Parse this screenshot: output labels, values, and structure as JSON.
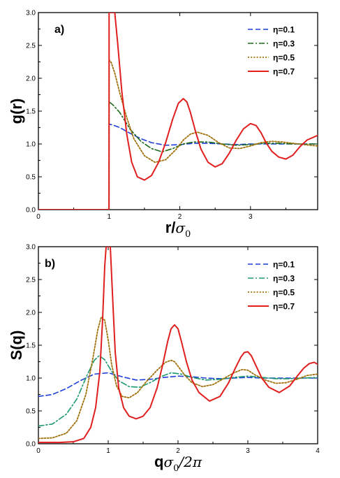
{
  "chart_data": [
    {
      "type": "line",
      "panel": "a)",
      "ylabel": "g(r)",
      "xlabel": {
        "main": "r/",
        "sym": "σ",
        "sub": "0"
      },
      "xlim": [
        0,
        3.95
      ],
      "ylim": [
        0,
        3.0
      ],
      "xticks": [
        0,
        1,
        2,
        3
      ],
      "yticks": [
        0.0,
        0.5,
        1.0,
        1.5,
        2.0,
        2.5,
        3.0
      ],
      "ytick_labels": [
        "0.0",
        "0.5",
        "1.0",
        "1.5",
        "2.0",
        "2.5",
        "3.0"
      ],
      "legend_position": "top-right",
      "series": [
        {
          "name": "η=0.1",
          "color": "#1f3fd6",
          "style": "dashed",
          "x": [
            0,
            0.999,
            1.0,
            1.05,
            1.15,
            1.3,
            1.45,
            1.6,
            1.8,
            2.0,
            2.2,
            2.4,
            2.6,
            2.8,
            3.0,
            3.2,
            3.4,
            3.6,
            3.8,
            3.95
          ],
          "y": [
            0,
            0,
            1.3,
            1.29,
            1.25,
            1.16,
            1.08,
            1.02,
            0.98,
            0.99,
            1.01,
            1.01,
            1.0,
            0.99,
            1.0,
            1.0,
            1.0,
            1.0,
            1.0,
            1.0
          ]
        },
        {
          "name": "η=0.3",
          "color": "#1a6b1a",
          "style": "dashdot",
          "x": [
            0,
            0.999,
            1.0,
            1.05,
            1.15,
            1.3,
            1.45,
            1.6,
            1.75,
            1.9,
            2.05,
            2.2,
            2.4,
            2.6,
            2.8,
            3.0,
            3.2,
            3.4,
            3.6,
            3.8,
            3.95
          ],
          "y": [
            0,
            0,
            1.64,
            1.6,
            1.48,
            1.22,
            1.04,
            0.93,
            0.88,
            0.93,
            1.0,
            1.03,
            1.03,
            1.0,
            0.98,
            0.99,
            1.01,
            1.01,
            1.0,
            1.0,
            1.0
          ]
        },
        {
          "name": "η=0.5",
          "color": "#a0700a",
          "style": "dotted",
          "x": [
            0,
            0.999,
            1.0,
            1.03,
            1.08,
            1.15,
            1.25,
            1.35,
            1.5,
            1.65,
            1.8,
            1.95,
            2.05,
            2.15,
            2.25,
            2.4,
            2.55,
            2.7,
            2.85,
            3.0,
            3.15,
            3.3,
            3.45,
            3.6,
            3.75,
            3.95
          ],
          "y": [
            0,
            0,
            2.28,
            2.24,
            2.08,
            1.78,
            1.4,
            1.08,
            0.82,
            0.72,
            0.76,
            0.92,
            1.06,
            1.15,
            1.18,
            1.13,
            1.02,
            0.94,
            0.93,
            0.97,
            1.02,
            1.04,
            1.03,
            1.01,
            0.99,
            0.97
          ]
        },
        {
          "name": "η=0.7",
          "color": "#e01e1e",
          "style": "solid",
          "x": [
            0,
            0.999,
            1.0,
            1.02,
            1.05,
            1.08,
            1.12,
            1.18,
            1.25,
            1.32,
            1.4,
            1.5,
            1.6,
            1.7,
            1.8,
            1.9,
            1.98,
            2.05,
            2.1,
            2.15,
            2.22,
            2.3,
            2.4,
            2.5,
            2.6,
            2.7,
            2.8,
            2.9,
            3.0,
            3.08,
            3.15,
            3.22,
            3.3,
            3.4,
            3.5,
            3.6,
            3.7,
            3.8,
            3.95
          ],
          "y": [
            0,
            0,
            3.0,
            3.0,
            3.0,
            3.0,
            2.55,
            1.8,
            1.15,
            0.72,
            0.5,
            0.45,
            0.52,
            0.72,
            1.02,
            1.38,
            1.62,
            1.69,
            1.64,
            1.48,
            1.2,
            0.92,
            0.72,
            0.65,
            0.7,
            0.86,
            1.06,
            1.23,
            1.31,
            1.28,
            1.17,
            1.02,
            0.89,
            0.8,
            0.77,
            0.83,
            0.96,
            1.06,
            1.13
          ]
        }
      ]
    },
    {
      "type": "line",
      "panel": "b)",
      "ylabel": "S(q)",
      "xlabel": {
        "main": "q",
        "sym": "σ",
        "sub": "0",
        "tail": "/2π"
      },
      "xlim": [
        0,
        4
      ],
      "ylim": [
        0,
        3.0
      ],
      "xticks": [
        0,
        1,
        2,
        3,
        4
      ],
      "yticks": [
        0.0,
        0.5,
        1.0,
        1.5,
        2.0,
        2.5,
        3.0
      ],
      "ytick_labels": [
        "0.0",
        "0.5",
        "1.0",
        "1.5",
        "2.0",
        "2.5",
        "3.0"
      ],
      "legend_position": "top-right",
      "series": [
        {
          "name": "η=0.1",
          "color": "#1f3fd6",
          "style": "dashed",
          "x": [
            0,
            0.2,
            0.4,
            0.6,
            0.8,
            1.0,
            1.2,
            1.4,
            1.6,
            1.8,
            2.0,
            2.2,
            2.4,
            2.6,
            2.8,
            3.0,
            3.2,
            3.4,
            3.6,
            3.8,
            4.0
          ],
          "y": [
            0.72,
            0.75,
            0.84,
            0.96,
            1.06,
            1.08,
            1.02,
            0.97,
            0.98,
            1.01,
            1.03,
            1.02,
            1.0,
            0.99,
            1.0,
            1.01,
            1.0,
            1.0,
            1.0,
            1.0,
            1.0
          ]
        },
        {
          "name": "η=0.3",
          "color": "#1a9a6a",
          "style": "dashdot",
          "x": [
            0,
            0.2,
            0.4,
            0.55,
            0.7,
            0.8,
            0.87,
            0.95,
            1.05,
            1.15,
            1.3,
            1.45,
            1.6,
            1.75,
            1.9,
            2.05,
            2.2,
            2.4,
            2.6,
            2.8,
            3.0,
            3.2,
            3.4,
            3.6,
            3.8,
            4.0
          ],
          "y": [
            0.27,
            0.3,
            0.45,
            0.68,
            1.05,
            1.27,
            1.34,
            1.28,
            1.1,
            0.96,
            0.87,
            0.86,
            0.93,
            1.02,
            1.08,
            1.06,
            1.01,
            0.97,
            0.98,
            1.01,
            1.03,
            1.01,
            0.99,
            0.99,
            1.0,
            1.01
          ]
        },
        {
          "name": "η=0.5",
          "color": "#a0700a",
          "style": "dotted",
          "x": [
            0,
            0.2,
            0.4,
            0.55,
            0.68,
            0.78,
            0.85,
            0.9,
            0.95,
            1.0,
            1.05,
            1.12,
            1.2,
            1.3,
            1.42,
            1.55,
            1.7,
            1.82,
            1.9,
            1.95,
            2.0,
            2.1,
            2.2,
            2.35,
            2.5,
            2.65,
            2.8,
            2.92,
            3.0,
            3.1,
            3.25,
            3.4,
            3.55,
            3.7,
            3.85,
            4.0
          ],
          "y": [
            0.08,
            0.09,
            0.16,
            0.35,
            0.75,
            1.3,
            1.73,
            1.93,
            1.88,
            1.58,
            1.2,
            0.88,
            0.72,
            0.7,
            0.78,
            0.95,
            1.12,
            1.24,
            1.27,
            1.25,
            1.18,
            1.04,
            0.93,
            0.87,
            0.9,
            0.99,
            1.08,
            1.13,
            1.12,
            1.05,
            0.97,
            0.92,
            0.93,
            0.98,
            1.04,
            1.06
          ]
        },
        {
          "name": "η=0.7",
          "color": "#e01e1e",
          "style": "solid",
          "x": [
            0,
            0.3,
            0.5,
            0.65,
            0.75,
            0.82,
            0.88,
            0.92,
            0.95,
            0.97,
            0.99,
            1.01,
            1.03,
            1.06,
            1.1,
            1.15,
            1.22,
            1.3,
            1.4,
            1.5,
            1.6,
            1.7,
            1.78,
            1.85,
            1.9,
            1.95,
            2.0,
            2.05,
            2.12,
            2.2,
            2.3,
            2.45,
            2.6,
            2.72,
            2.82,
            2.9,
            2.95,
            3.0,
            3.05,
            3.12,
            3.2,
            3.3,
            3.45,
            3.6,
            3.7,
            3.8,
            3.88,
            3.95,
            4.0
          ],
          "y": [
            0.02,
            0.02,
            0.03,
            0.08,
            0.25,
            0.55,
            1.1,
            1.9,
            2.7,
            3.0,
            3.0,
            3.0,
            3.0,
            2.3,
            1.4,
            0.85,
            0.55,
            0.42,
            0.38,
            0.42,
            0.55,
            0.85,
            1.2,
            1.55,
            1.75,
            1.81,
            1.75,
            1.55,
            1.25,
            0.97,
            0.78,
            0.65,
            0.72,
            0.92,
            1.15,
            1.32,
            1.39,
            1.4,
            1.34,
            1.18,
            1.0,
            0.86,
            0.78,
            0.88,
            1.02,
            1.15,
            1.22,
            1.24,
            1.21
          ]
        }
      ]
    }
  ]
}
